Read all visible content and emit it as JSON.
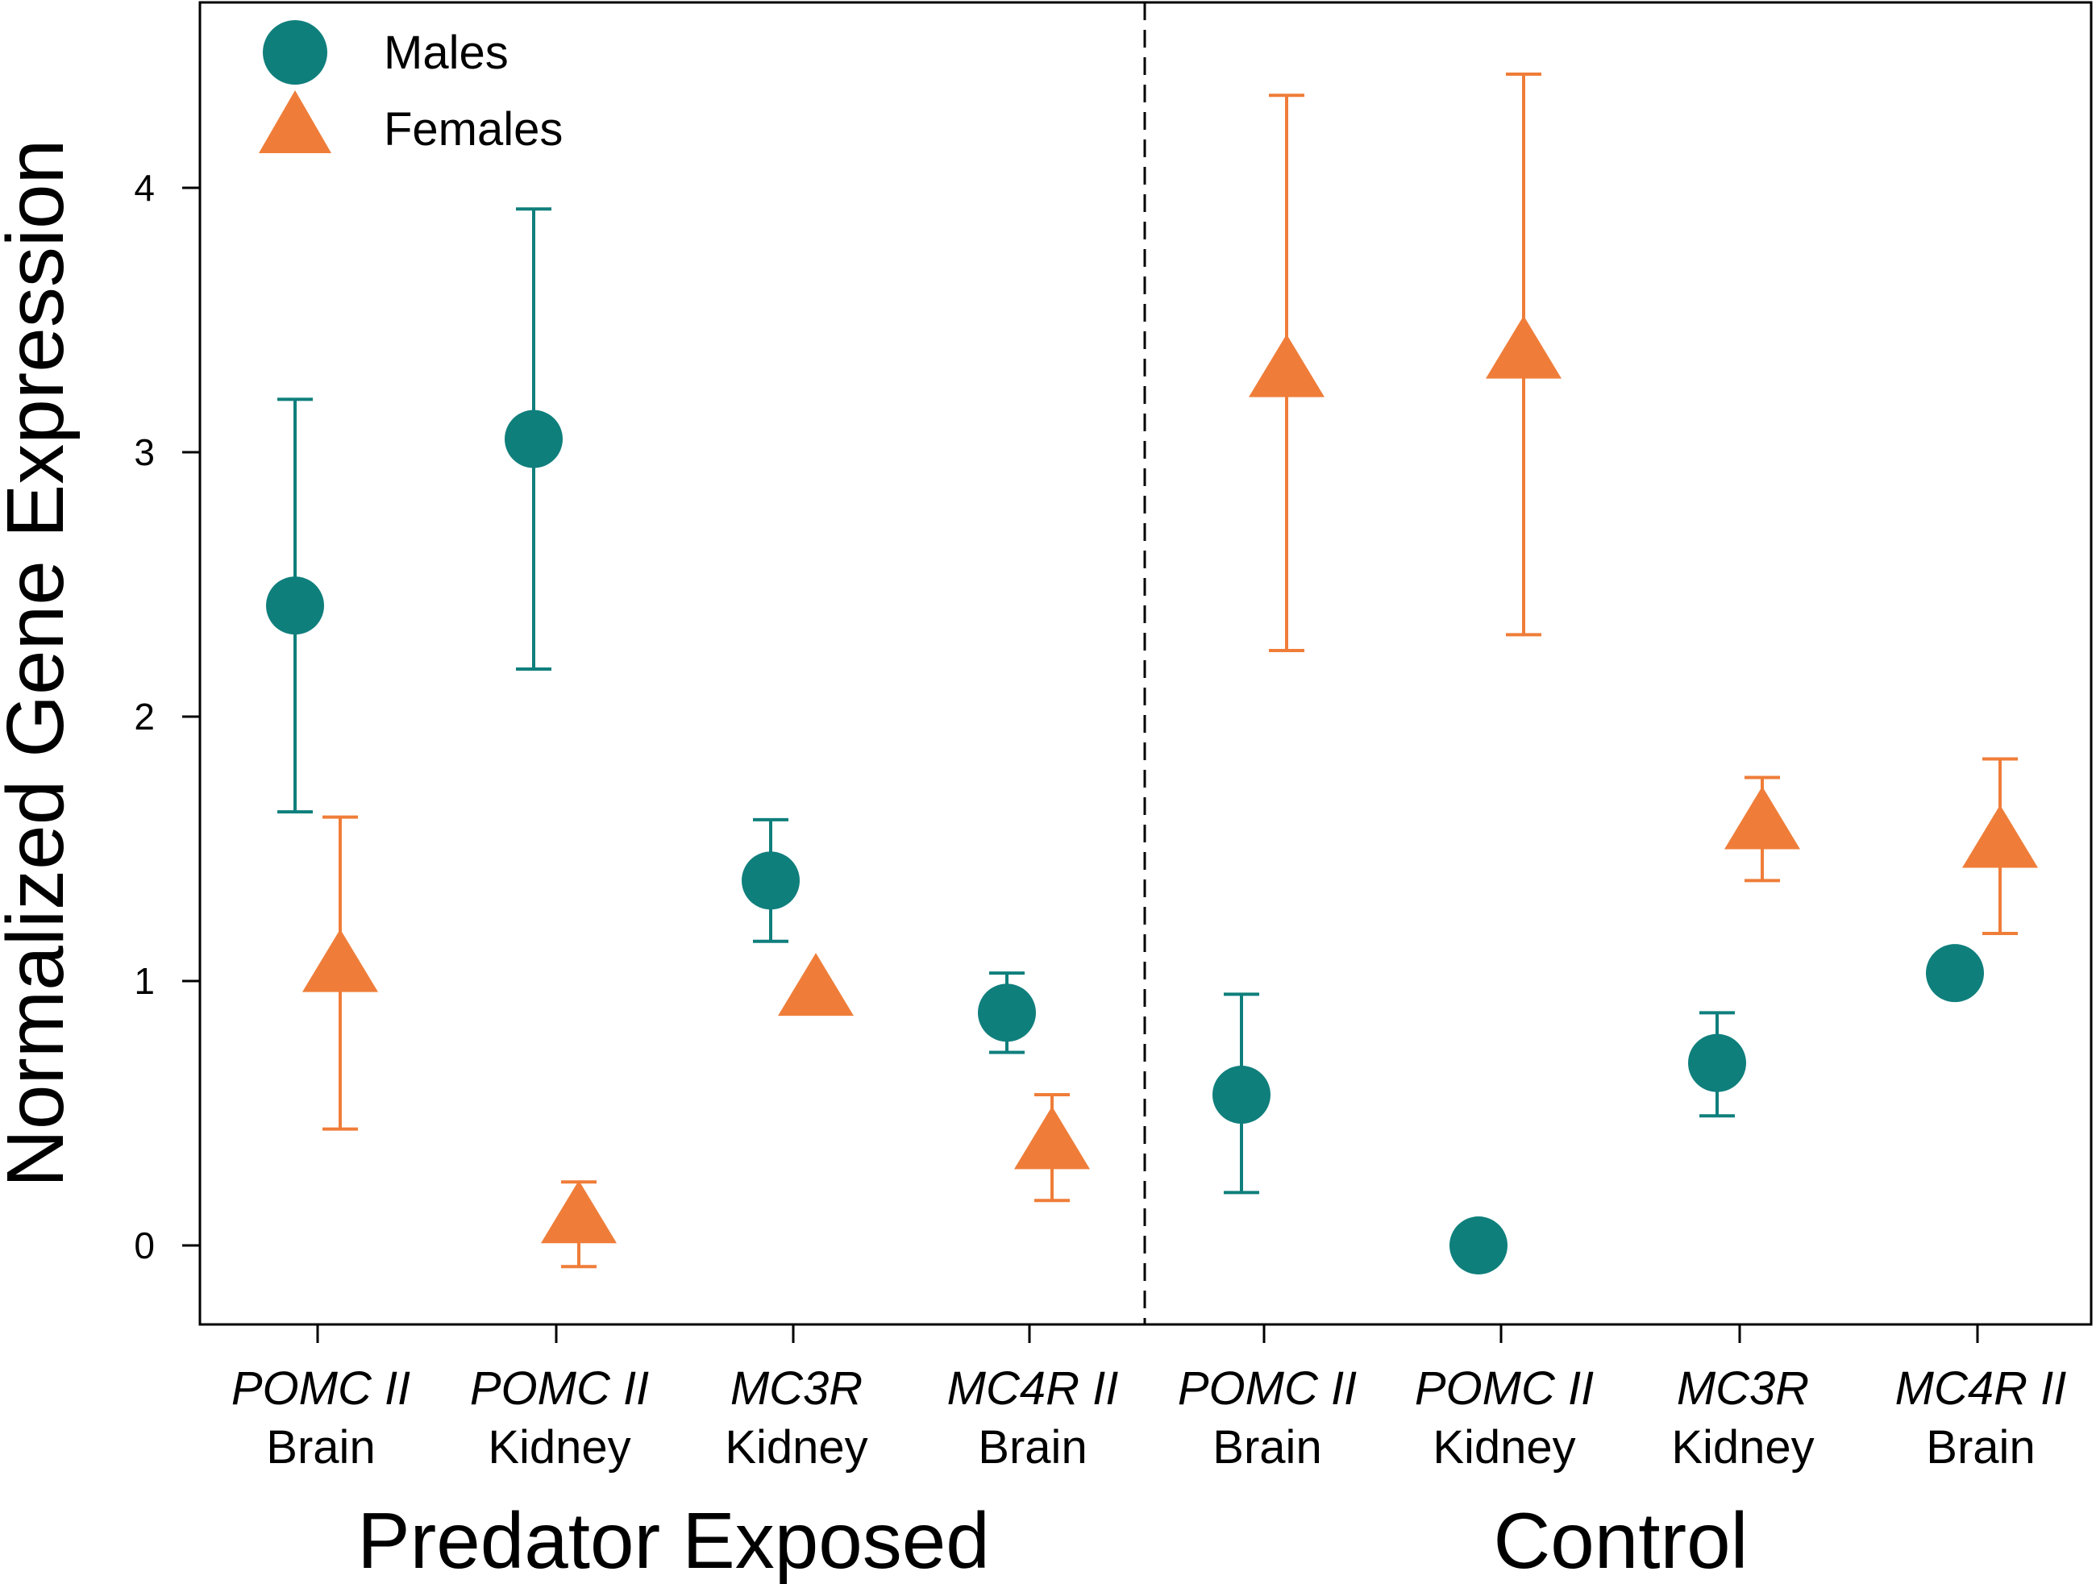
{
  "chart_data": {
    "type": "scatter",
    "title": "",
    "ylabel": "Normalized Gene Expression",
    "xlabel": "",
    "ylim": [
      -0.3,
      4.7
    ],
    "yticks": [
      0,
      1,
      2,
      3,
      4
    ],
    "grid": false,
    "legend_position": "top-left",
    "colors": {
      "males": "#0f7f7c",
      "females": "#ef7d39"
    },
    "groups": [
      {
        "name": "Predator Exposed"
      },
      {
        "name": "Control"
      }
    ],
    "categories": [
      {
        "gene": "POMC II",
        "tissue": "Brain",
        "group": "Predator Exposed"
      },
      {
        "gene": "POMC II",
        "tissue": "Kidney",
        "group": "Predator Exposed"
      },
      {
        "gene": "MC3R",
        "tissue": "Kidney",
        "group": "Predator Exposed"
      },
      {
        "gene": "MC4R II",
        "tissue": "Brain",
        "group": "Predator Exposed"
      },
      {
        "gene": "POMC II",
        "tissue": "Brain",
        "group": "Control"
      },
      {
        "gene": "POMC II",
        "tissue": "Kidney",
        "group": "Control"
      },
      {
        "gene": "MC3R",
        "tissue": "Kidney",
        "group": "Control"
      },
      {
        "gene": "MC4R II",
        "tissue": "Brain",
        "group": "Control"
      }
    ],
    "series": [
      {
        "name": "Males",
        "marker": "circle",
        "values": [
          2.42,
          3.05,
          1.38,
          0.88,
          0.57,
          0.0,
          0.69,
          1.03
        ],
        "error_low": [
          1.64,
          2.18,
          1.15,
          0.73,
          0.2,
          null,
          0.49,
          null
        ],
        "error_high": [
          3.2,
          3.92,
          1.61,
          1.03,
          0.95,
          null,
          0.88,
          null
        ]
      },
      {
        "name": "Females",
        "marker": "triangle",
        "values": [
          1.05,
          0.1,
          0.96,
          0.38,
          3.3,
          3.37,
          1.59,
          1.52
        ],
        "error_low": [
          0.44,
          -0.08,
          null,
          0.17,
          2.25,
          2.31,
          1.38,
          1.18
        ],
        "error_high": [
          1.62,
          0.24,
          null,
          0.57,
          4.35,
          4.43,
          1.77,
          1.84
        ]
      }
    ]
  }
}
